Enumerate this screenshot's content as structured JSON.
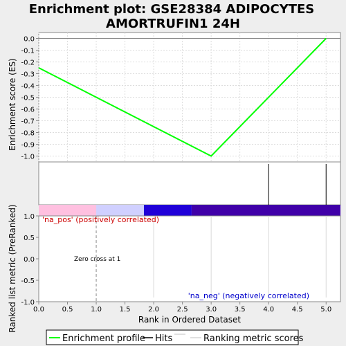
{
  "chart_data": {
    "type": "line",
    "title_line1": "Enrichment plot: GSE28384 ADIPOCYTES",
    "title_line2": "AMORTRUFIN1 24H",
    "xlabel": "Rank in Ordered Dataset",
    "xlim": [
      0,
      5.25
    ],
    "x_ticks": [
      "0.0",
      "0.5",
      "1.0",
      "1.5",
      "2.0",
      "2.5",
      "3.0",
      "3.5",
      "4.0",
      "4.5",
      "5.0"
    ],
    "es_panel": {
      "ylabel": "Enrichment score (ES)",
      "ylim": [
        -1.05,
        0.05
      ],
      "y_ticks": [
        "0.0",
        "-0.1",
        "-0.2",
        "-0.3",
        "-0.4",
        "-0.5",
        "-0.6",
        "-0.7",
        "-0.8",
        "-0.9",
        "-1.0"
      ],
      "series": [
        {
          "name": "Enrichment profile",
          "color": "#00ff00",
          "x": [
            0,
            3,
            5
          ],
          "y": [
            -0.25,
            -1.0,
            0.0
          ]
        }
      ]
    },
    "hits": [
      4,
      5
    ],
    "color_bar": [
      {
        "from": 0,
        "to": 1,
        "color": "#ffc0e0"
      },
      {
        "from": 1,
        "to": 1.83,
        "color": "#d0d0ff"
      },
      {
        "from": 1.83,
        "to": 2.66,
        "color": "#2000d8"
      },
      {
        "from": 2.66,
        "to": 5.25,
        "color": "#4000a8"
      }
    ],
    "metric_panel": {
      "ylabel": "Ranked list metric (PreRanked)",
      "ylim": [
        -1.0,
        1.0
      ],
      "y_ticks": [
        "1.0",
        "0.5",
        "0.0",
        "-0.5",
        "-1.0"
      ],
      "metric_x": [
        2,
        3,
        4,
        5
      ],
      "zero_cross_x": 1,
      "zero_cross_label": "Zero cross at 1",
      "pos_label": "'na_pos' (positively correlated)",
      "neg_label": "'na_neg' (negatively correlated)"
    },
    "legend": [
      {
        "label": "Enrichment profile",
        "color": "#00ff00"
      },
      {
        "label": "Hits",
        "color": "#000000"
      },
      {
        "label": "Ranking metric scores",
        "color": "#c0c0c0"
      }
    ]
  }
}
